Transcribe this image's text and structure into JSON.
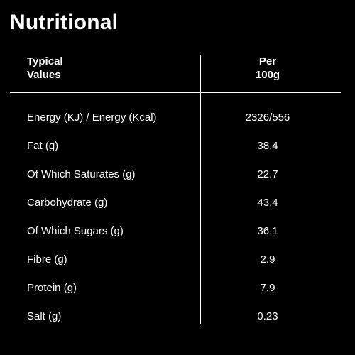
{
  "title": "Nutritional",
  "header": {
    "col1_line1": "Typical",
    "col1_line2": "Values",
    "col2_line1": "Per",
    "col2_line2": "100g"
  },
  "rows": [
    {
      "label": "Energy (KJ) / Energy (Kcal)",
      "value": "2326/556"
    },
    {
      "label": "Fat (g)",
      "value": "38.4"
    },
    {
      "label": "Of Which Saturates (g)",
      "value": "22.7"
    },
    {
      "label": "Carbohydrate (g)",
      "value": "43.4"
    },
    {
      "label": "Of Which Sugars (g)",
      "value": "36.1"
    },
    {
      "label": "Fibre (g)",
      "value": "2.9"
    },
    {
      "label": "Protein (g)",
      "value": "7.9"
    },
    {
      "label": "Salt (g)",
      "value": "0.23"
    }
  ]
}
